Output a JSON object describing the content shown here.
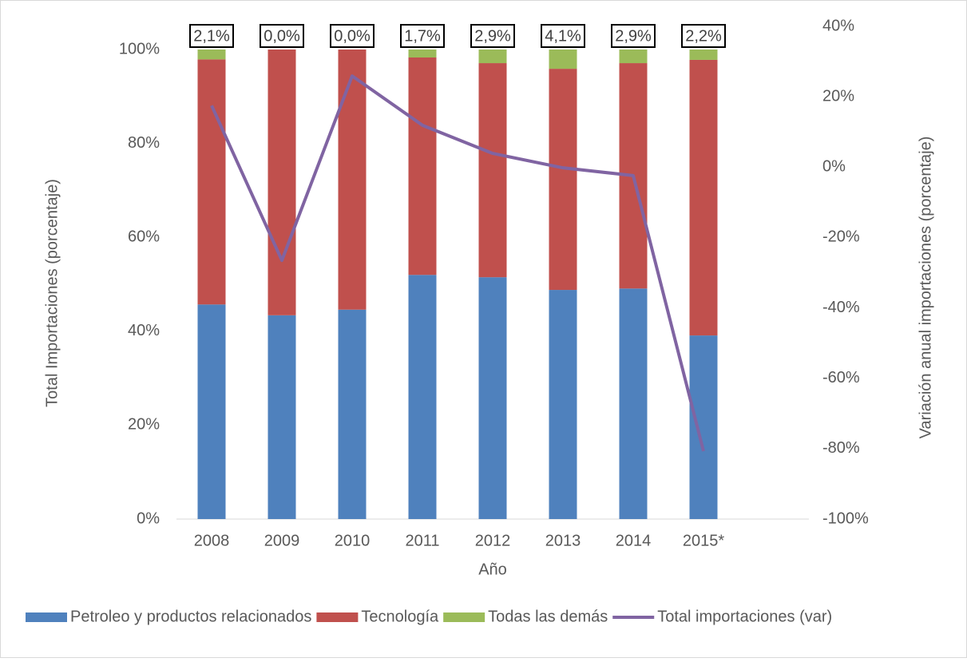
{
  "chart_data": {
    "type": "bar",
    "xlabel": "Año",
    "ylabel": "Total Importaciones (porcentaje)",
    "y2label": "Variación anual importaciones (porcentaje)",
    "categories": [
      "2008",
      "2009",
      "2010",
      "2011",
      "2012",
      "2013",
      "2014",
      "2015*"
    ],
    "stacked": true,
    "series": [
      {
        "name": "Petroleo y productos relacionados",
        "color": "#4f81bd",
        "values": [
          45.7,
          43.4,
          44.6,
          52.0,
          51.5,
          48.8,
          49.1,
          39.1
        ]
      },
      {
        "name": "Tecnología",
        "color": "#c0504d",
        "values": [
          52.2,
          56.6,
          55.4,
          46.3,
          45.6,
          47.1,
          48.0,
          58.7
        ]
      },
      {
        "name": "Todas las demás",
        "color": "#9bbb59",
        "values": [
          2.1,
          0.0,
          0.0,
          1.7,
          2.9,
          4.1,
          2.9,
          2.2
        ],
        "value_labels": [
          "2,1%",
          "0,0%",
          "0,0%",
          "1,7%",
          "2,9%",
          "4,1%",
          "2,9%",
          "2,2%"
        ]
      },
      {
        "name": "Total importaciones (var)",
        "color": "#8064a2",
        "type": "line",
        "axis": "y2",
        "values": [
          17.5,
          -26.5,
          25.9,
          11.9,
          3.9,
          -0.2,
          -2.4,
          -80.7
        ]
      }
    ],
    "ylim": [
      0,
      100
    ],
    "yticks": [
      {
        "value": 0,
        "label": "0%"
      },
      {
        "value": 20,
        "label": "20%"
      },
      {
        "value": 40,
        "label": "40%"
      },
      {
        "value": 60,
        "label": "60%"
      },
      {
        "value": 80,
        "label": "80%"
      },
      {
        "value": 100,
        "label": "100%"
      }
    ],
    "y2lim": [
      -100,
      40
    ],
    "y2ticks": [
      {
        "value": -100,
        "label": "-100%"
      },
      {
        "value": -80,
        "label": "-80%"
      },
      {
        "value": -60,
        "label": "-60%"
      },
      {
        "value": -40,
        "label": "-40%"
      },
      {
        "value": -20,
        "label": "-20%"
      },
      {
        "value": 0,
        "label": "0%"
      },
      {
        "value": 20,
        "label": "20%"
      },
      {
        "value": 40,
        "label": "40%"
      }
    ],
    "legend": "bottom"
  }
}
